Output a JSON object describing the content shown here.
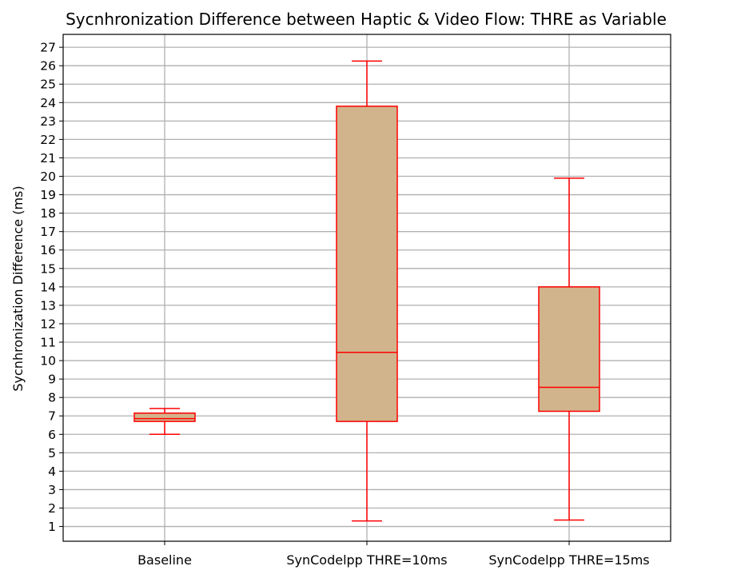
{
  "chart_data": {
    "type": "box",
    "title": "Sycnhronization Difference between Haptic & Video Flow: THRE as Variable",
    "xlabel": "",
    "ylabel": "Sycnhronization Difference (ms)",
    "ylim": [
      0.2,
      27.7
    ],
    "yticks": [
      1,
      2,
      3,
      4,
      5,
      6,
      7,
      8,
      9,
      10,
      11,
      12,
      13,
      14,
      15,
      16,
      17,
      18,
      19,
      20,
      21,
      22,
      23,
      24,
      25,
      26,
      27
    ],
    "grid": true,
    "categories": [
      "Baseline",
      "SynCodelpp THRE=10ms",
      "SynCodelpp THRE=15ms"
    ],
    "boxes": [
      {
        "whisker_low": 6.0,
        "q1": 6.7,
        "median": 6.85,
        "q3": 7.15,
        "whisker_high": 7.4
      },
      {
        "whisker_low": 1.3,
        "q1": 6.7,
        "median": 10.45,
        "q3": 23.8,
        "whisker_high": 26.25
      },
      {
        "whisker_low": 1.35,
        "q1": 7.25,
        "median": 8.55,
        "q3": 14.0,
        "whisker_high": 19.9
      }
    ],
    "colors": {
      "box_fill": "#d2b48c",
      "box_edge": "#ff0000",
      "grid": "#b0b0b0",
      "axes": "#000000"
    }
  }
}
